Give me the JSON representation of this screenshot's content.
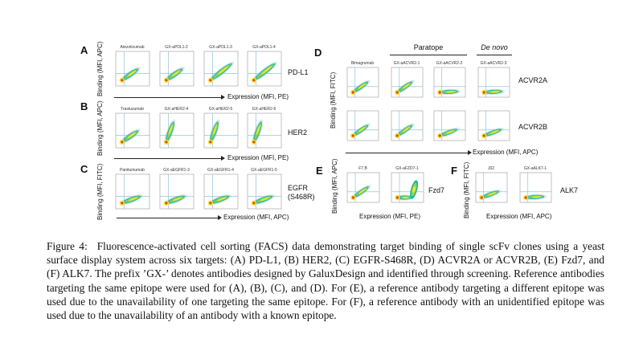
{
  "figure": {
    "panels": [
      {
        "id": "A",
        "label": "A",
        "target": "PD-L1",
        "y_axis": "Binding (MFI, APC)",
        "x_axis": "Expression (MFI, PE)",
        "plots": [
          {
            "title": "Atezolizumab",
            "pattern": "diag"
          },
          {
            "title": "GX-aPDL1-2",
            "pattern": "diag"
          },
          {
            "title": "GX-aPDL1-3",
            "pattern": "diaglong"
          },
          {
            "title": "GX-aPDL1-4",
            "pattern": "diaglong"
          }
        ]
      },
      {
        "id": "B",
        "label": "B",
        "target": "HER2",
        "y_axis": "Binding (MFI, APC)",
        "x_axis": "Expression (MFI, PE)",
        "plots": [
          {
            "title": "Trastuzumab",
            "pattern": "diag"
          },
          {
            "title": "GX-aHER2-4",
            "pattern": "steep"
          },
          {
            "title": "GX-aHER2-5",
            "pattern": "steep"
          },
          {
            "title": "GX-aHER2-6",
            "pattern": "steep"
          }
        ]
      },
      {
        "id": "C",
        "label": "C",
        "target": "EGFR (S468R)",
        "y_axis": "Binding (MFI, FITC)",
        "x_axis": "Expression (MFI, APC)",
        "plots": [
          {
            "title": "Panitumumab",
            "pattern": "tilt"
          },
          {
            "title": "GX-aEGFR1-3",
            "pattern": "tilt"
          },
          {
            "title": "GX-aEGFR1-4",
            "pattern": "tilt"
          },
          {
            "title": "GX-aEGFR1-5",
            "pattern": "tilt"
          }
        ]
      },
      {
        "id": "D",
        "label": "D",
        "y_axis": "Binding (MFI, FITC)",
        "x_axis": "Expression (MFI, APC)",
        "group_headers": {
          "paratope": "Paratope",
          "de_novo": "De novo"
        },
        "titles": [
          "Bimagrumab",
          "GX-aACVR2-1",
          "GX-aACVR2-2",
          "GX-aACVR2-3"
        ],
        "rows": [
          {
            "target": "ACVR2A",
            "patterns": [
              "diag",
              "diag",
              "flat",
              "flat"
            ]
          },
          {
            "target": "ACVR2B",
            "patterns": [
              "diag",
              "diag",
              "tilt",
              "tilt"
            ]
          }
        ]
      },
      {
        "id": "E",
        "label": "E",
        "target": "Fzd7",
        "y_axis": "Binding (MFI, APC)",
        "x_axis": "Expression (MFI, PE)",
        "plots": [
          {
            "title": "F7.B",
            "pattern": "diag"
          },
          {
            "title": "GX-aFZD7-1",
            "pattern": "lshape"
          }
        ]
      },
      {
        "id": "F",
        "label": "F",
        "target": "ALK7",
        "y_axis": "Binding (MFI, FITC)",
        "x_axis": "Expression (MFI, APC)",
        "plots": [
          {
            "title": "J02",
            "pattern": "tilt"
          },
          {
            "title": "GX-aALK7-1",
            "pattern": "flat"
          }
        ]
      }
    ]
  },
  "caption": {
    "label": "Figure 4:",
    "text": "Fluorescence-activated cell sorting (FACS) data demonstrating target binding of single scFv clones using a yeast surface display system across six targets: (A) PD-L1, (B) HER2, (C) EGFR-S468R, (D) ACVR2A or ACVR2B, (E) Fzd7, and (F) ALK7. The prefix ’GX-’ denotes antibodies designed by GaluxDesign and identified through screening. Reference antibodies targeting the same epitope were used for (A), (B), (C), and (D). For (E), a reference antibody targeting a different epitope was used due to the unavailability of one targeting the same epitope. For (F), a reference antibody with an unidentified epitope was used due to the unavailability of an antibody with a known epitope."
  },
  "colors": {
    "quadrant": "#7fb8d8",
    "outer": "#1fb5a0",
    "mid": "#8ed64a",
    "inner": "#f3e531",
    "core": "#e0442a"
  }
}
